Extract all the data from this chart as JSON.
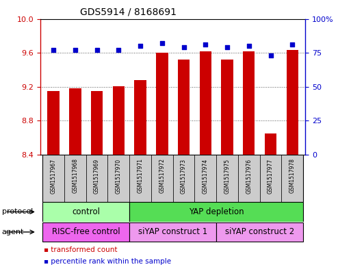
{
  "title": "GDS5914 / 8168691",
  "samples": [
    "GSM1517967",
    "GSM1517968",
    "GSM1517969",
    "GSM1517970",
    "GSM1517971",
    "GSM1517972",
    "GSM1517973",
    "GSM1517974",
    "GSM1517975",
    "GSM1517976",
    "GSM1517977",
    "GSM1517978"
  ],
  "transformed_count": [
    9.15,
    9.18,
    9.15,
    9.21,
    9.28,
    9.6,
    9.52,
    9.62,
    9.52,
    9.62,
    8.65,
    9.63
  ],
  "percentile_rank": [
    77,
    77,
    77,
    77,
    80,
    82,
    79,
    81,
    79,
    80,
    73,
    81
  ],
  "ylim_left": [
    8.4,
    10.0
  ],
  "ylim_right": [
    0,
    100
  ],
  "yticks_left": [
    8.4,
    8.8,
    9.2,
    9.6,
    10.0
  ],
  "yticks_right": [
    0,
    25,
    50,
    75,
    100
  ],
  "bar_color": "#cc0000",
  "dot_color": "#0000cc",
  "bar_bottom": 8.4,
  "protocol_groups": [
    {
      "label": "control",
      "start": 0,
      "end": 3,
      "color": "#aaffaa"
    },
    {
      "label": "YAP depletion",
      "start": 4,
      "end": 11,
      "color": "#55dd55"
    }
  ],
  "agent_groups": [
    {
      "label": "RISC-free control",
      "start": 0,
      "end": 3,
      "color": "#ee66ee"
    },
    {
      "label": "siYAP construct 1",
      "start": 4,
      "end": 7,
      "color": "#ee99ee"
    },
    {
      "label": "siYAP construct 2",
      "start": 8,
      "end": 11,
      "color": "#ee99ee"
    }
  ],
  "legend_items": [
    {
      "label": "transformed count",
      "color": "#cc0000"
    },
    {
      "label": "percentile rank within the sample",
      "color": "#0000cc"
    }
  ],
  "protocol_label": "protocol",
  "agent_label": "agent",
  "xlabel_bg": "#cccccc",
  "background_color": "#ffffff",
  "grid_color": "#555555"
}
